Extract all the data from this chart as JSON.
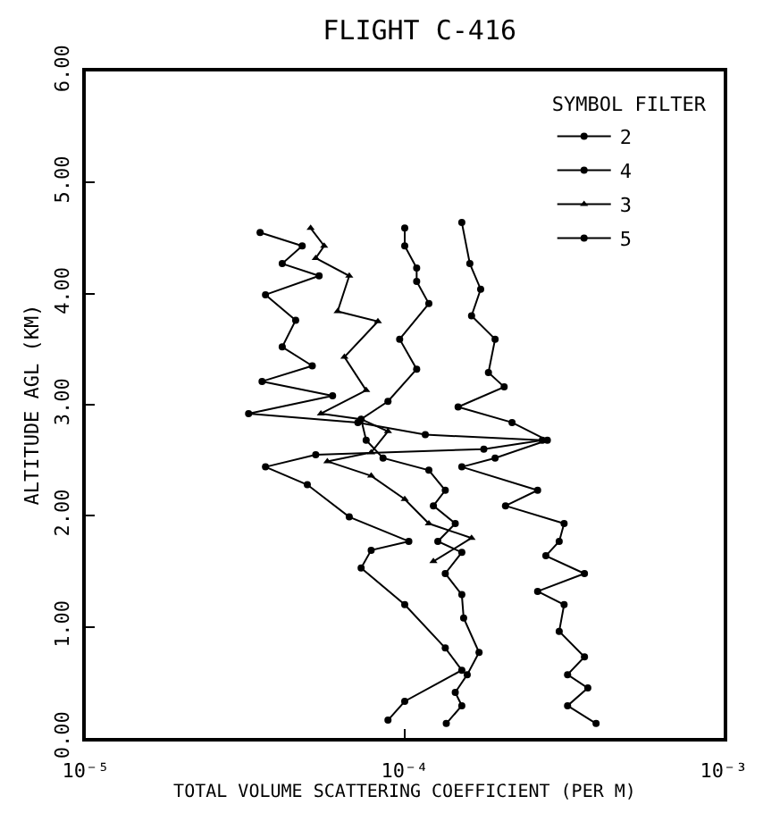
{
  "chart_data": {
    "type": "line",
    "title": "FLIGHT C-416",
    "xlabel": "TOTAL VOLUME SCATTERING COEFFICIENT (PER M)",
    "ylabel": "ALTITUDE AGL (KM)",
    "legend_title": "SYMBOL FILTER",
    "legend": "top right",
    "log": "x",
    "grid": false,
    "line_style": "solid",
    "xlim": [
      1e-05,
      0.001
    ],
    "xticks": [
      {
        "value": 1e-05,
        "label": "10⁻⁵"
      },
      {
        "value": 0.0001,
        "label": "10⁻⁴"
      },
      {
        "value": 0.001,
        "label": "10⁻³"
      }
    ],
    "ylim": [
      0,
      6
    ],
    "yticks": [
      {
        "value": 0,
        "label": "0.00"
      },
      {
        "value": 1,
        "label": "1.00"
      },
      {
        "value": 2,
        "label": "2.00"
      },
      {
        "value": 3,
        "label": "3.00"
      },
      {
        "value": 4,
        "label": "4.00"
      },
      {
        "value": 5,
        "label": "5.00"
      },
      {
        "value": 6,
        "label": "6.00"
      }
    ],
    "series": [
      {
        "name": "2",
        "color": "#000000",
        "marker": "circle",
        "x": [
          0.000151,
          0.00016,
          0.000173,
          0.000162,
          0.000192,
          0.000183,
          0.000205,
          0.000147,
          0.000217,
          0.00028,
          0.000192,
          0.000151,
          0.000261,
          0.000207,
          0.000316,
          0.000305,
          0.000277,
          0.000366,
          0.000261,
          0.000316,
          0.000305,
          0.000366,
          0.000324,
          0.000375,
          0.000324,
          0.000398
        ],
        "values": [
          4.64,
          4.27,
          4.04,
          3.8,
          3.59,
          3.29,
          3.16,
          2.98,
          2.84,
          2.68,
          2.52,
          2.44,
          2.23,
          2.09,
          1.93,
          1.77,
          1.64,
          1.48,
          1.32,
          1.2,
          0.96,
          0.73,
          0.57,
          0.45,
          0.29,
          0.13
        ]
      },
      {
        "name": "4",
        "color": "#000000",
        "marker": "circle",
        "x": [
          0.0001,
          0.0001,
          0.000109,
          0.000109,
          0.000119,
          9.64e-05,
          0.000109,
          8.86e-05,
          7.3e-05,
          7.57e-05,
          8.55e-05,
          0.000119,
          0.000134,
          0.000123,
          0.000144,
          0.000127,
          0.000151,
          0.000134,
          0.000151,
          0.000153,
          0.000171,
          0.000157,
          0.000144,
          0.000151,
          0.000135
        ],
        "values": [
          4.59,
          4.43,
          4.23,
          4.11,
          3.91,
          3.59,
          3.32,
          3.03,
          2.87,
          2.68,
          2.52,
          2.41,
          2.23,
          2.09,
          1.93,
          1.77,
          1.67,
          1.48,
          1.29,
          1.08,
          0.77,
          0.57,
          0.41,
          0.29,
          0.13
        ]
      },
      {
        "name": "3",
        "color": "#000000",
        "marker": "triangle",
        "x": [
          5.07e-05,
          5.59e-05,
          5.26e-05,
          6.7e-05,
          6.16e-05,
          8.24e-05,
          6.47e-05,
          7.57e-05,
          5.46e-05,
          7.3e-05,
          8.86e-05,
          7.85e-05,
          5.72e-05,
          7.85e-05,
          0.0001,
          0.000119,
          0.000162,
          0.000123
        ],
        "values": [
          4.59,
          4.43,
          4.32,
          4.16,
          3.84,
          3.75,
          3.43,
          3.13,
          2.92,
          2.87,
          2.76,
          2.57,
          2.49,
          2.36,
          2.15,
          1.93,
          1.8,
          1.59
        ]
      },
      {
        "name": "5",
        "color": "#000000",
        "marker": "circle",
        "x": [
          3.52e-05,
          4.77e-05,
          4.13e-05,
          5.39e-05,
          3.66e-05,
          4.55e-05,
          4.13e-05,
          5.13e-05,
          3.57e-05,
          5.94e-05,
          3.24e-05,
          7.13e-05,
          0.000116,
          0.00027,
          0.000177,
          5.26e-05,
          3.66e-05,
          4.95e-05,
          6.7e-05,
          0.000103,
          7.85e-05,
          7.3e-05,
          0.0001,
          0.000134,
          0.000151,
          0.0001,
          8.86e-05
        ],
        "values": [
          4.55,
          4.43,
          4.27,
          4.16,
          3.99,
          3.76,
          3.52,
          3.35,
          3.21,
          3.08,
          2.92,
          2.84,
          2.73,
          2.68,
          2.6,
          2.55,
          2.44,
          2.28,
          1.99,
          1.77,
          1.69,
          1.53,
          1.2,
          0.81,
          0.61,
          0.33,
          0.16
        ]
      }
    ]
  }
}
